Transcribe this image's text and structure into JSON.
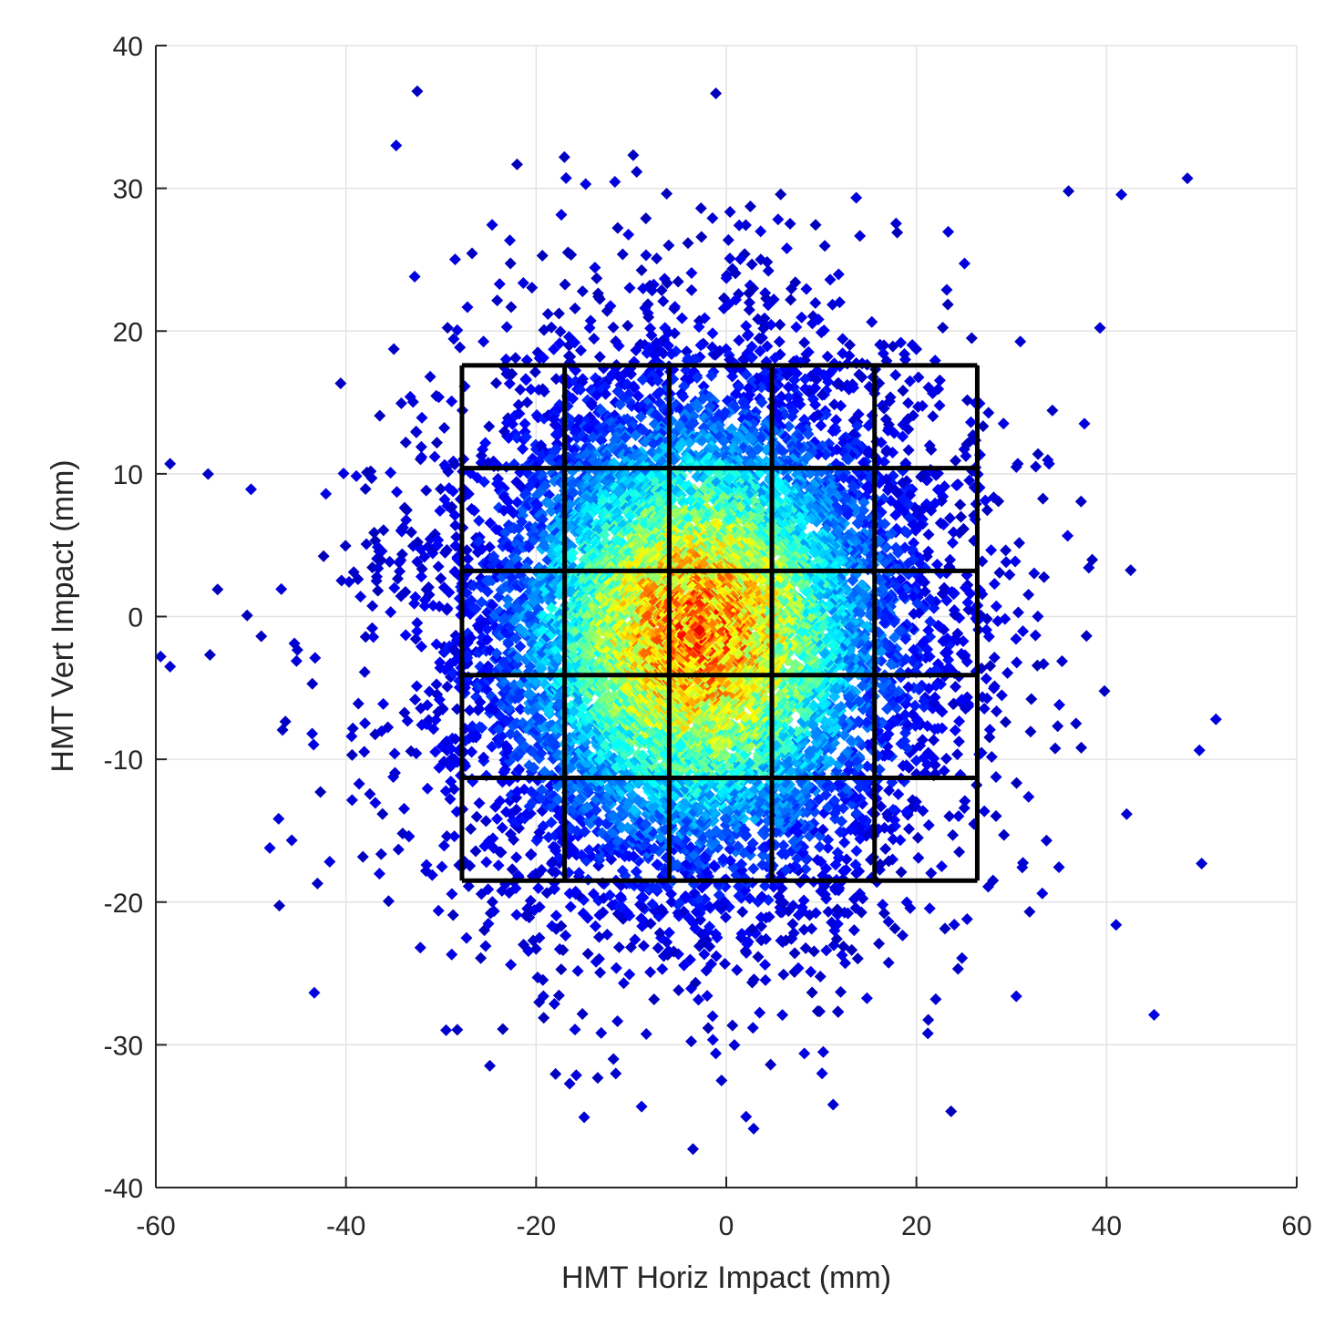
{
  "chart_data": {
    "type": "scatter",
    "title": "",
    "xlabel": "HMT  Horiz Impact (mm)",
    "ylabel": "HMT  Vert Impact (mm)",
    "xlim": [
      -60,
      60
    ],
    "ylim": [
      -40,
      40
    ],
    "xticks": [
      -60,
      -40,
      -20,
      0,
      20,
      40,
      60
    ],
    "yticks": [
      -40,
      -30,
      -20,
      -10,
      0,
      10,
      20,
      30,
      40
    ],
    "xtick_labels": [
      "-60",
      "-40",
      "-20",
      "0",
      "20",
      "40",
      "60"
    ],
    "ytick_labels": [
      "-40",
      "-30",
      "-20",
      "-10",
      "0",
      "10",
      "20",
      "30",
      "40"
    ],
    "grid": true,
    "marker": "diamond",
    "colormap": "jet",
    "color_meaning": "local point density (blue = low, dark red = high)",
    "distribution": {
      "kind": "approximately bivariate normal",
      "center": [
        -3,
        -1
      ],
      "std_x": 13,
      "std_y": 10,
      "approx_count": 9000,
      "x_extent": [
        -60,
        52
      ],
      "y_extent": [
        -37,
        37
      ]
    },
    "extreme_points": [
      {
        "x": -32.5,
        "y": 36.8
      },
      {
        "x": 48.5,
        "y": 30.7
      },
      {
        "x": 36,
        "y": 29.8
      },
      {
        "x": -3.5,
        "y": -37.3
      },
      {
        "x": -0.5,
        "y": -32.5
      },
      {
        "x": 45,
        "y": -27.9
      },
      {
        "x": 50,
        "y": -17.3
      },
      {
        "x": 51.5,
        "y": -7.2
      },
      {
        "x": -58.5,
        "y": 10.7
      },
      {
        "x": -59.5,
        "y": -2.8
      },
      {
        "x": -58.5,
        "y": -3.5
      },
      {
        "x": -53.5,
        "y": 1.9
      },
      {
        "x": -43,
        "y": -18.7
      },
      {
        "x": 30.5,
        "y": -26.6
      },
      {
        "x": 21.2,
        "y": -29.2
      },
      {
        "x": 10.2,
        "y": -30.5
      },
      {
        "x": -23.5,
        "y": -28.9
      },
      {
        "x": 41,
        "y": -21.6
      }
    ],
    "overlay_grid": {
      "x_edges": [
        -27.8,
        -17,
        -6,
        4.8,
        15.6,
        26.4
      ],
      "y_edges": [
        -18.5,
        -11.3,
        -4.1,
        3.2,
        10.4,
        17.6
      ],
      "line_color": "#000000"
    }
  }
}
